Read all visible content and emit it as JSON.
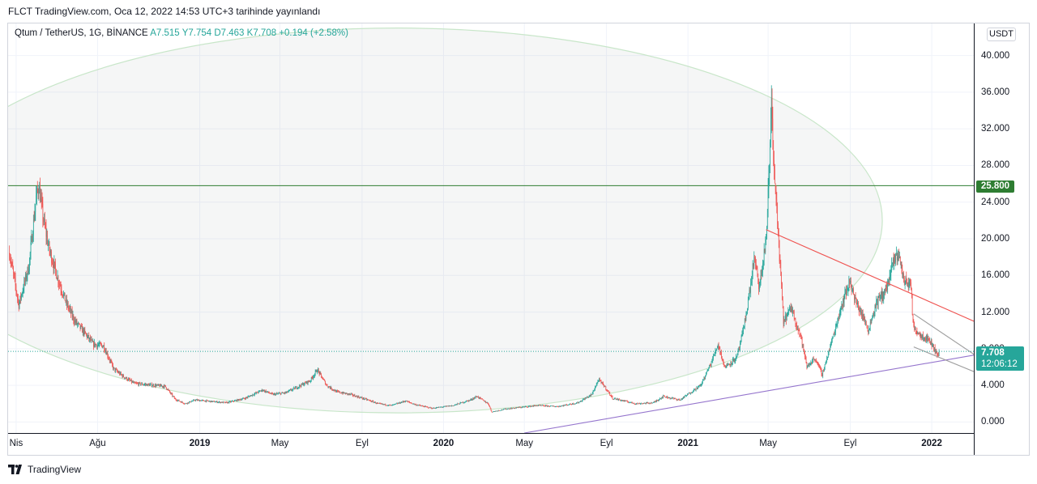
{
  "caption": "FLCT TradingView.com, Oca 12, 2022 14:53 UTC+3 tarihinde yayınlandı",
  "legend": {
    "symbol": "Qtum / TetherUS, 1G, BİNANCE",
    "open_label": "A",
    "open": "7.515",
    "high_label": "Y",
    "high": "7.754",
    "low_label": "D",
    "low": "7.463",
    "close_label": "K",
    "close": "7.708",
    "change": "+0.194 (+2.58%)"
  },
  "currency_button": "USDT",
  "level_label": "25.800",
  "price_badge": {
    "price": "7.708",
    "countdown": "12:06:12"
  },
  "footer_logo": "TradingView",
  "colors": {
    "up": "#26a69a",
    "down": "#ef5350",
    "level": "#2e7d32",
    "fan_red": "#ef5350",
    "fan_purple": "#9575cd",
    "ellipse": "#c8e6c9"
  },
  "chart_data": {
    "type": "candlestick",
    "title": "Qtum / TetherUS, 1G, BİNANCE",
    "y_axis": {
      "ticks": [
        "0.000",
        "4.000",
        "8.000",
        "12.000",
        "16.000",
        "20.000",
        "24.000",
        "28.000",
        "32.000",
        "36.000",
        "40.000"
      ],
      "range": [
        -1.2,
        43.5
      ],
      "position": "right"
    },
    "x_axis": {
      "ticks": [
        "Nis",
        "Ağu",
        "2019",
        "May",
        "Eyl",
        "2020",
        "May",
        "Eyl",
        "2021",
        "May",
        "Eyl",
        "2022"
      ],
      "bold_ticks": [
        "2019",
        "2020",
        "2021",
        "2022"
      ],
      "range": [
        "2018-03-20",
        "2022-03-05"
      ]
    },
    "horizontal_level": 25.8,
    "last_price": 7.708,
    "price_path": [
      [
        "2018-03-22",
        18.5
      ],
      [
        "2018-04-05",
        12.8
      ],
      [
        "2018-04-20",
        17.0
      ],
      [
        "2018-05-01",
        24.5
      ],
      [
        "2018-05-05",
        25.8
      ],
      [
        "2018-05-12",
        22.0
      ],
      [
        "2018-05-20",
        19.0
      ],
      [
        "2018-06-01",
        16.0
      ],
      [
        "2018-06-15",
        13.0
      ],
      [
        "2018-06-28",
        11.0
      ],
      [
        "2018-07-15",
        9.5
      ],
      [
        "2018-07-25",
        8.5
      ],
      [
        "2018-08-10",
        8.3
      ],
      [
        "2018-08-25",
        5.8
      ],
      [
        "2018-09-08",
        5.0
      ],
      [
        "2018-09-25",
        4.2
      ],
      [
        "2018-10-10",
        4.1
      ],
      [
        "2018-10-25",
        4.0
      ],
      [
        "2018-11-10",
        3.9
      ],
      [
        "2018-11-25",
        2.5
      ],
      [
        "2018-12-10",
        2.0
      ],
      [
        "2018-12-25",
        2.4
      ],
      [
        "2019-01-10",
        2.3
      ],
      [
        "2019-02-10",
        2.1
      ],
      [
        "2019-03-10",
        2.6
      ],
      [
        "2019-04-05",
        3.5
      ],
      [
        "2019-04-20",
        3.0
      ],
      [
        "2019-05-10",
        3.2
      ],
      [
        "2019-06-01",
        4.0
      ],
      [
        "2019-06-15",
        4.5
      ],
      [
        "2019-06-26",
        5.7
      ],
      [
        "2019-07-10",
        4.0
      ],
      [
        "2019-07-25",
        3.3
      ],
      [
        "2019-08-15",
        3.0
      ],
      [
        "2019-09-10",
        2.4
      ],
      [
        "2019-09-25",
        2.0
      ],
      [
        "2019-10-15",
        1.8
      ],
      [
        "2019-11-05",
        2.3
      ],
      [
        "2019-11-20",
        1.9
      ],
      [
        "2019-12-15",
        1.5
      ],
      [
        "2020-01-15",
        1.8
      ],
      [
        "2020-02-10",
        2.4
      ],
      [
        "2020-02-20",
        2.8
      ],
      [
        "2020-03-08",
        2.0
      ],
      [
        "2020-03-13",
        1.1
      ],
      [
        "2020-04-01",
        1.4
      ],
      [
        "2020-04-25",
        1.6
      ],
      [
        "2020-05-20",
        1.8
      ],
      [
        "2020-06-20",
        1.7
      ],
      [
        "2020-07-20",
        2.1
      ],
      [
        "2020-08-10",
        3.0
      ],
      [
        "2020-08-20",
        4.6
      ],
      [
        "2020-08-28",
        4.0
      ],
      [
        "2020-09-10",
        2.6
      ],
      [
        "2020-10-15",
        2.0
      ],
      [
        "2020-11-10",
        2.1
      ],
      [
        "2020-11-25",
        2.8
      ],
      [
        "2020-12-20",
        2.4
      ],
      [
        "2021-01-10",
        3.5
      ],
      [
        "2021-01-20",
        4.0
      ],
      [
        "2021-02-05",
        6.5
      ],
      [
        "2021-02-15",
        8.5
      ],
      [
        "2021-02-25",
        6.0
      ],
      [
        "2021-03-15",
        7.0
      ],
      [
        "2021-03-25",
        10.0
      ],
      [
        "2021-04-05",
        15.0
      ],
      [
        "2021-04-10",
        18.0
      ],
      [
        "2021-04-18",
        14.5
      ],
      [
        "2021-04-28",
        20.0
      ],
      [
        "2021-05-03",
        28.0
      ],
      [
        "2021-05-06",
        35.5
      ],
      [
        "2021-05-10",
        27.0
      ],
      [
        "2021-05-13",
        24.0
      ],
      [
        "2021-05-19",
        17.0
      ],
      [
        "2021-05-24",
        11.0
      ],
      [
        "2021-06-05",
        12.5
      ],
      [
        "2021-06-20",
        9.0
      ],
      [
        "2021-06-28",
        6.0
      ],
      [
        "2021-07-10",
        7.0
      ],
      [
        "2021-07-21",
        5.2
      ],
      [
        "2021-08-05",
        9.0
      ],
      [
        "2021-08-20",
        13.0
      ],
      [
        "2021-09-01",
        15.5
      ],
      [
        "2021-09-07",
        13.5
      ],
      [
        "2021-09-20",
        11.5
      ],
      [
        "2021-09-28",
        10.0
      ],
      [
        "2021-10-10",
        13.0
      ],
      [
        "2021-10-25",
        14.5
      ],
      [
        "2021-11-05",
        17.5
      ],
      [
        "2021-11-12",
        18.5
      ],
      [
        "2021-11-20",
        15.5
      ],
      [
        "2021-12-01",
        15.0
      ],
      [
        "2021-12-04",
        10.5
      ],
      [
        "2021-12-15",
        9.5
      ],
      [
        "2021-12-28",
        9.0
      ],
      [
        "2022-01-05",
        8.0
      ],
      [
        "2022-01-10",
        7.2
      ],
      [
        "2022-01-12",
        7.708
      ]
    ],
    "drawings": {
      "ellipse": {
        "center": [
          "2019-10-25",
          22.0
        ],
        "radius_x_days": 725,
        "radius_y_price": 21.0
      },
      "trendline_upper": {
        "from": [
          "2021-04-28",
          21.0
        ],
        "to": [
          "2022-03-05",
          11.0
        ]
      },
      "trendline_lower": {
        "from": [
          "2020-05-01",
          -1.2
        ],
        "to": [
          "2022-03-05",
          7.3
        ]
      },
      "small_wedge_top": {
        "from": [
          "2021-12-05",
          11.8
        ],
        "to": [
          "2022-03-05",
          7.4
        ]
      },
      "small_wedge_bottom": {
        "from": [
          "2021-12-05",
          8.2
        ],
        "to": [
          "2022-03-05",
          5.5
        ]
      }
    }
  }
}
